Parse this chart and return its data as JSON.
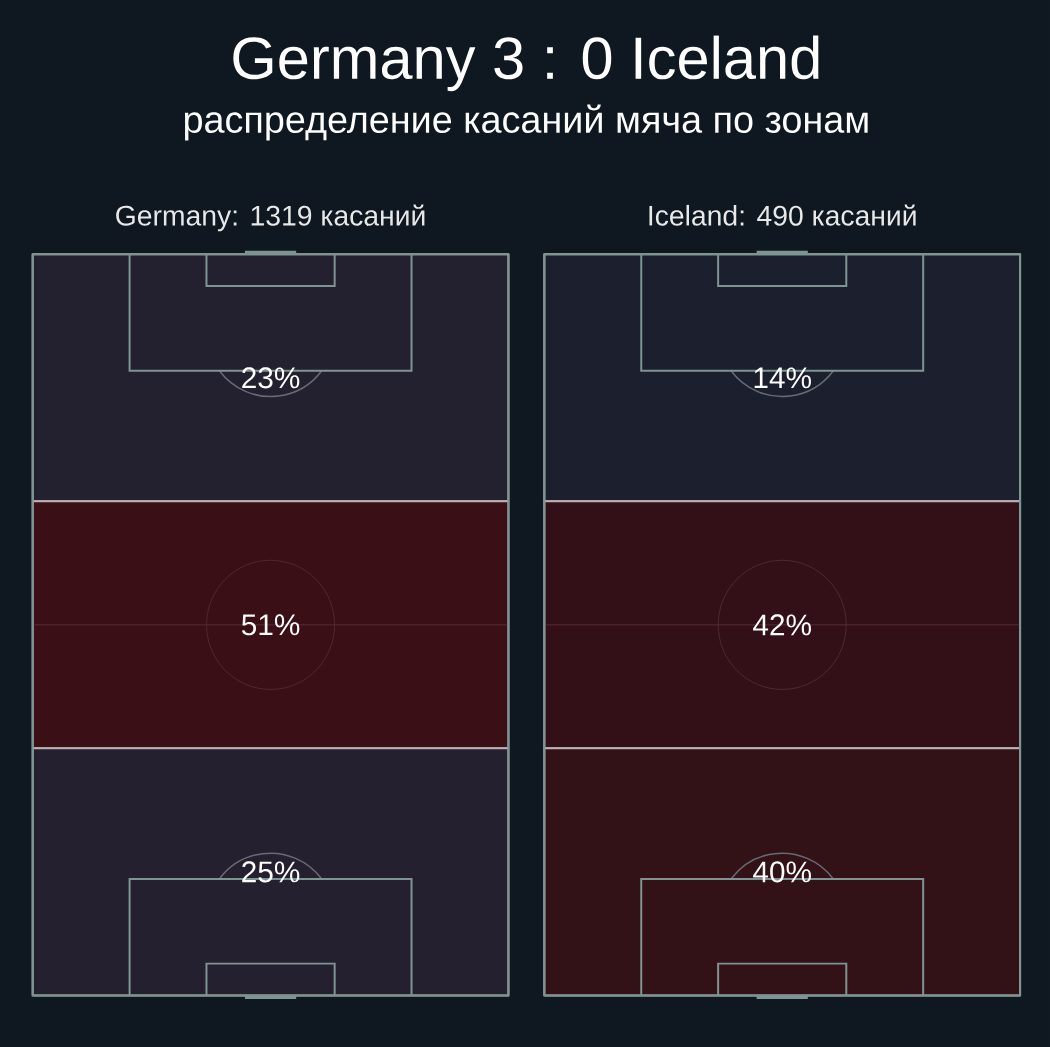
{
  "chart_data": [
    {
      "type": "other",
      "title": "Germany 3 : 0 Iceland",
      "subtitle": "распределение касаний мяча по зонам"
    },
    {
      "type": "other",
      "title": "Germany: 1319 касаний",
      "categories": [
        null,
        null,
        null
      ],
      "values": [
        23,
        51,
        25
      ],
      "value_labels": [
        "23%",
        "51%",
        "25%"
      ]
    },
    {
      "type": "other",
      "title": "Iceland: 490 касаний",
      "categories": [
        null,
        null,
        null
      ],
      "values": [
        14,
        42,
        40
      ],
      "value_labels": [
        "14%",
        "42%",
        "40%"
      ]
    }
  ]
}
